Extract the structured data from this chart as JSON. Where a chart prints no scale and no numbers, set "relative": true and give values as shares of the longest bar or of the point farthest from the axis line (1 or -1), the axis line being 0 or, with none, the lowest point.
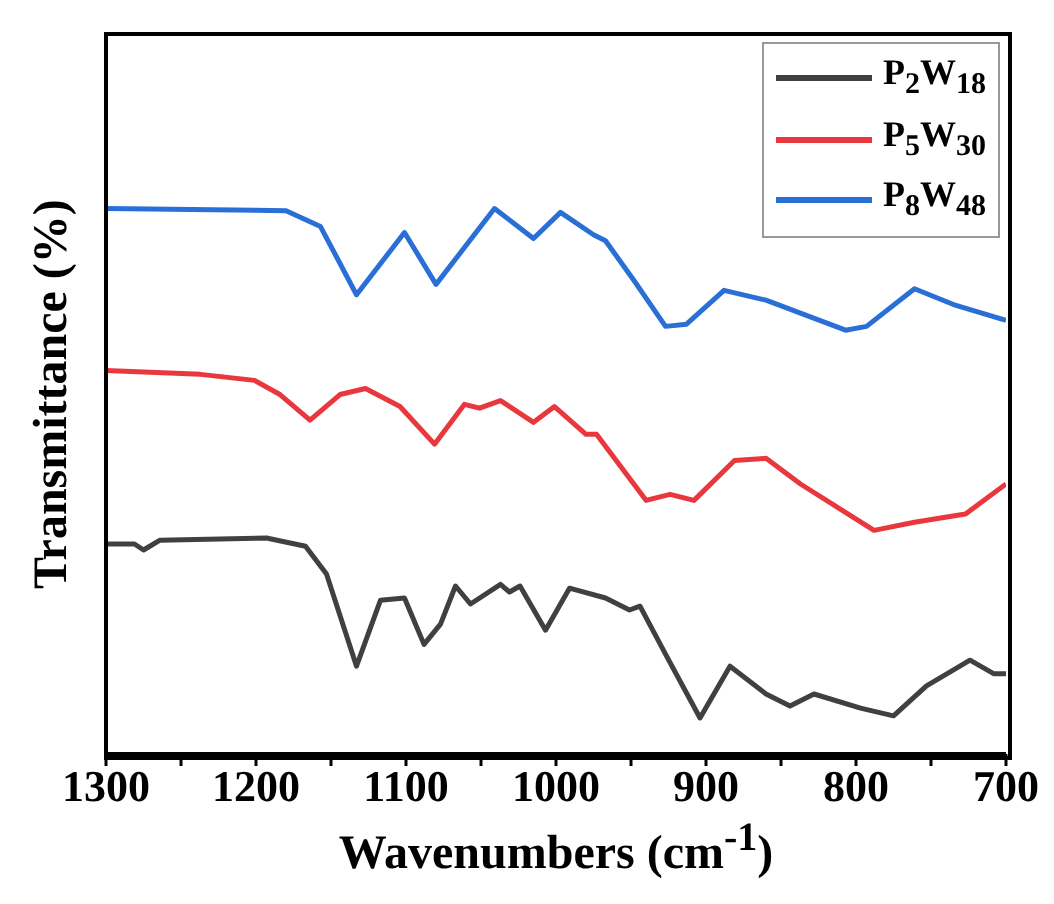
{
  "chart_data": {
    "type": "line",
    "relative": true,
    "xlabel": "Wavenumbers (cm$^{-1}$)",
    "ylabel": "Transmittance (%)",
    "xlim": [
      1300,
      700
    ],
    "xticks": [
      1300,
      {
        "value": 1250,
        "label": null
      },
      1200,
      {
        "value": 1150,
        "label": null
      },
      1100,
      {
        "value": 1050,
        "label": null
      },
      1000,
      {
        "value": 950,
        "label": null
      },
      900,
      {
        "value": 850,
        "label": null
      },
      800,
      {
        "value": 750,
        "label": null
      },
      700
    ],
    "tick_labels": "x",
    "legend": "top right",
    "marker": "none",
    "line_style": "solid",
    "series": [
      {
        "name": "P$_{2}$W$_{18}$",
        "color": "#404040",
        "x": [
          1300,
          1281,
          1275,
          1264,
          1193,
          1167,
          1153,
          1133,
          1117,
          1101,
          1088,
          1077,
          1067,
          1057,
          1037,
          1031,
          1024,
          1007,
          991,
          967,
          951,
          944,
          927,
          904,
          884,
          860,
          844,
          828,
          797,
          775,
          753,
          724,
          708,
          700
        ],
        "values": [
          0.385,
          0.385,
          0.374,
          0.392,
          0.396,
          0.381,
          0.33,
          0.161,
          0.282,
          0.286,
          0.201,
          0.238,
          0.308,
          0.275,
          0.311,
          0.297,
          0.308,
          0.227,
          0.304,
          0.286,
          0.264,
          0.271,
          0.183,
          0.066,
          0.161,
          0.11,
          0.088,
          0.11,
          0.084,
          0.07,
          0.125,
          0.172,
          0.147,
          0.147
        ]
      },
      {
        "name": "P$_{5}$W$_{30}$",
        "color": "#e8383d",
        "x": [
          1300,
          1237,
          1201,
          1184,
          1164,
          1144,
          1127,
          1104,
          1081,
          1061,
          1051,
          1037,
          1015,
          1001,
          980,
          973,
          940,
          924,
          908,
          881,
          860,
          837,
          788,
          761,
          727,
          700
        ],
        "values": [
          0.703,
          0.696,
          0.685,
          0.659,
          0.612,
          0.659,
          0.67,
          0.637,
          0.568,
          0.641,
          0.634,
          0.648,
          0.608,
          0.637,
          0.586,
          0.586,
          0.465,
          0.476,
          0.465,
          0.538,
          0.542,
          0.495,
          0.41,
          0.425,
          0.44,
          0.495
        ]
      },
      {
        "name": "P$_{8}$W$_{48}$",
        "color": "#2a6fd6",
        "x": [
          1300,
          1180,
          1157,
          1133,
          1101,
          1080,
          1041,
          1015,
          997,
          975,
          967,
          948,
          927,
          913,
          888,
          860,
          807,
          793,
          761,
          735,
          700
        ],
        "values": [
          1.0,
          0.996,
          0.967,
          0.842,
          0.956,
          0.861,
          1.0,
          0.945,
          0.993,
          0.952,
          0.941,
          0.868,
          0.784,
          0.788,
          0.85,
          0.832,
          0.777,
          0.784,
          0.853,
          0.824,
          0.795
        ]
      }
    ]
  }
}
